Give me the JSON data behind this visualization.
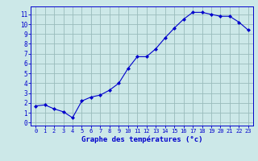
{
  "hours": [
    0,
    1,
    2,
    3,
    4,
    5,
    6,
    7,
    8,
    9,
    10,
    11,
    12,
    13,
    14,
    15,
    16,
    17,
    18,
    19,
    20,
    21,
    22,
    23
  ],
  "temperatures": [
    1.7,
    1.8,
    1.4,
    1.1,
    0.5,
    2.2,
    2.6,
    2.8,
    3.3,
    4.0,
    5.5,
    6.7,
    6.7,
    7.5,
    8.6,
    9.6,
    10.5,
    11.2,
    11.2,
    11.0,
    10.8,
    10.8,
    10.2,
    9.4
  ],
  "line_color": "#0000cc",
  "marker_color": "#0000cc",
  "bg_color": "#cce8e8",
  "grid_color": "#99bbbb",
  "xlabel": "Graphe des températures (°c)",
  "xlabel_color": "#0000cc",
  "tick_color": "#0000cc",
  "ylim": [
    -0.3,
    11.8
  ],
  "xlim": [
    -0.5,
    23.5
  ],
  "yticks": [
    0,
    1,
    2,
    3,
    4,
    5,
    6,
    7,
    8,
    9,
    10,
    11
  ],
  "xticks": [
    0,
    1,
    2,
    3,
    4,
    5,
    6,
    7,
    8,
    9,
    10,
    11,
    12,
    13,
    14,
    15,
    16,
    17,
    18,
    19,
    20,
    21,
    22,
    23
  ]
}
